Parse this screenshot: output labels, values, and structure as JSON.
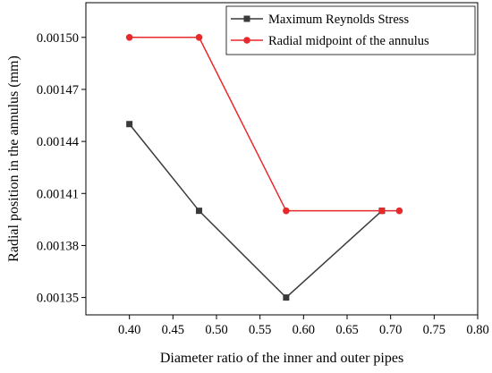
{
  "chart_data": {
    "type": "line",
    "xlabel": "Diameter ratio of the inner and outer pipes",
    "ylabel": "Radial position in the annulus (mm)",
    "xlim": [
      0.35,
      0.8
    ],
    "ylim": [
      0.00134,
      0.00152
    ],
    "x_ticks": [
      0.4,
      0.45,
      0.5,
      0.55,
      0.6,
      0.65,
      0.7,
      0.75,
      0.8
    ],
    "x_tick_labels": [
      "0.40",
      "0.45",
      "0.50",
      "0.55",
      "0.60",
      "0.65",
      "0.70",
      "0.75",
      "0.80"
    ],
    "y_ticks": [
      0.00135,
      0.00138,
      0.00141,
      0.00144,
      0.00147,
      0.0015
    ],
    "y_tick_labels": [
      "0.00135",
      "0.00138",
      "0.00141",
      "0.00144",
      "0.00147",
      "0.00150"
    ],
    "grid": false,
    "legend_position": "top-right",
    "series": [
      {
        "name": "Maximum Reynolds Stress",
        "color": "#3a3a3a",
        "marker": "square",
        "x": [
          0.4,
          0.48,
          0.58,
          0.69
        ],
        "y": [
          0.00145,
          0.0014,
          0.00135,
          0.0014
        ]
      },
      {
        "name": "Radial midpoint of the annulus",
        "color": "#e8292b",
        "marker": "circle",
        "x": [
          0.4,
          0.48,
          0.58,
          0.69,
          0.71
        ],
        "y": [
          0.0015,
          0.0015,
          0.0014,
          0.0014,
          0.0014
        ]
      }
    ]
  }
}
